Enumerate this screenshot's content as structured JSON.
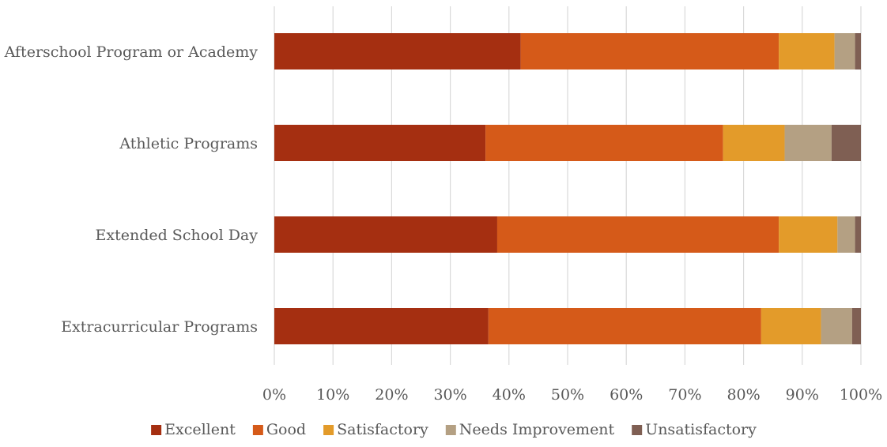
{
  "chart_data": {
    "type": "bar",
    "orientation": "horizontal",
    "stacking": "percent",
    "categories": [
      "Afterschool Program or Academy",
      "Athletic Programs",
      "Extended School Day",
      "Extracurricular Programs"
    ],
    "series": [
      {
        "name": "Excellent",
        "color": "#a52f11",
        "values": [
          42,
          36,
          38,
          36.5
        ]
      },
      {
        "name": "Good",
        "color": "#d55a19",
        "values": [
          44,
          40.5,
          48,
          46.5
        ]
      },
      {
        "name": "Satisfactory",
        "color": "#e39b2a",
        "values": [
          9.5,
          10.5,
          10,
          10.2
        ]
      },
      {
        "name": "Needs Improvement",
        "color": "#b4a083",
        "values": [
          3.5,
          8,
          3,
          5.3
        ]
      },
      {
        "name": "Unsatisfactory",
        "color": "#7f5f53",
        "values": [
          1,
          5,
          1,
          1.5
        ]
      }
    ],
    "x_ticks": [
      "0%",
      "10%",
      "20%",
      "30%",
      "40%",
      "50%",
      "60%",
      "70%",
      "80%",
      "90%",
      "100%"
    ],
    "xlim": [
      0,
      100
    ],
    "grid": true,
    "legend_position": "bottom",
    "title": "",
    "xlabel": "",
    "ylabel": ""
  }
}
